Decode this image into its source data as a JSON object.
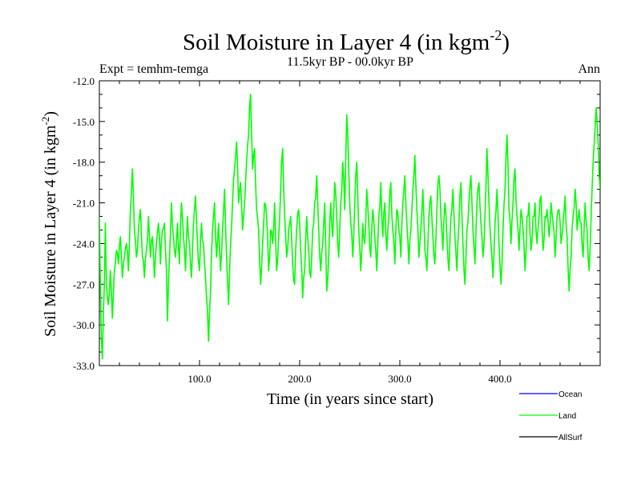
{
  "chart_data": {
    "type": "line",
    "title": "Soil Moisture in Layer 4 (in kgm",
    "title_sup": "-2",
    "title_end": ")",
    "subtitle_left": "Expt = temhm-temga",
    "subtitle_center": "11.5kyr BP - 00.0kyr BP",
    "subtitle_right": "Ann",
    "xlabel": "Time (in years since start)",
    "ylabel": "Soil Moisture in Layer 4 (in kgm",
    "ylabel_sup": "-2",
    "ylabel_end": ")",
    "xlim": [
      0,
      500
    ],
    "ylim": [
      -33,
      -12
    ],
    "x_ticks": [
      100,
      200,
      300,
      400
    ],
    "x_tick_labels": [
      "100.0",
      "200.0",
      "300.0",
      "400.0"
    ],
    "y_ticks": [
      -33,
      -30,
      -27,
      -24,
      -21,
      -18,
      -15,
      -12
    ],
    "y_tick_labels": [
      "-33.0",
      "-30.0",
      "-27.0",
      "-24.0",
      "-21.0",
      "-18.0",
      "-15.0",
      "-12.0"
    ],
    "legend": [
      {
        "name": "Ocean",
        "color": "#0000ff"
      },
      {
        "name": "Land",
        "color": "#00ff00"
      },
      {
        "name": "AllSurf",
        "color": "#000000"
      }
    ],
    "series": [
      {
        "name": "Land",
        "color": "#00ff00",
        "anchors": [
          [
            0,
            -22
          ],
          [
            2,
            -31
          ],
          [
            3,
            -32.5
          ],
          [
            5,
            -27
          ],
          [
            6,
            -22.5
          ],
          [
            7,
            -27
          ],
          [
            9,
            -28.5
          ],
          [
            11,
            -26
          ],
          [
            13,
            -29.5
          ],
          [
            15,
            -26
          ],
          [
            17,
            -24.5
          ],
          [
            19,
            -25.5
          ],
          [
            21,
            -23.5
          ],
          [
            23,
            -26.5
          ],
          [
            25,
            -25
          ],
          [
            27,
            -24
          ],
          [
            29,
            -26
          ],
          [
            31,
            -21.5
          ],
          [
            33,
            -18.5
          ],
          [
            35,
            -23
          ],
          [
            37,
            -25
          ],
          [
            39,
            -23
          ],
          [
            41,
            -21.5
          ],
          [
            43,
            -25
          ],
          [
            45,
            -26.5
          ],
          [
            47,
            -24.5
          ],
          [
            49,
            -22
          ],
          [
            51,
            -25
          ],
          [
            53,
            -23.5
          ],
          [
            55,
            -26.5
          ],
          [
            57,
            -24
          ],
          [
            59,
            -22.5
          ],
          [
            61,
            -25.5
          ],
          [
            63,
            -23
          ],
          [
            65,
            -22.5
          ],
          [
            67,
            -26
          ],
          [
            68,
            -29.7
          ],
          [
            70,
            -25
          ],
          [
            72,
            -21
          ],
          [
            74,
            -23.5
          ],
          [
            76,
            -25
          ],
          [
            78,
            -22.5
          ],
          [
            80,
            -25.5
          ],
          [
            82,
            -21
          ],
          [
            84,
            -23.5
          ],
          [
            86,
            -26
          ],
          [
            88,
            -22
          ],
          [
            90,
            -24
          ],
          [
            92,
            -26.5
          ],
          [
            94,
            -22.5
          ],
          [
            96,
            -20.5
          ],
          [
            98,
            -24
          ],
          [
            100,
            -26
          ],
          [
            102,
            -22.5
          ],
          [
            104,
            -24
          ],
          [
            106,
            -26.5
          ],
          [
            108,
            -29
          ],
          [
            109,
            -31.2
          ],
          [
            111,
            -27.5
          ],
          [
            113,
            -23
          ],
          [
            115,
            -21
          ],
          [
            117,
            -25
          ],
          [
            119,
            -22.5
          ],
          [
            121,
            -26
          ],
          [
            123,
            -23
          ],
          [
            125,
            -20
          ],
          [
            127,
            -25
          ],
          [
            129,
            -28.5
          ],
          [
            131,
            -24
          ],
          [
            133,
            -21
          ],
          [
            135,
            -18.5
          ],
          [
            137,
            -16.5
          ],
          [
            139,
            -21
          ],
          [
            141,
            -19.5
          ],
          [
            143,
            -23
          ],
          [
            145,
            -21
          ],
          [
            147,
            -18
          ],
          [
            149,
            -16
          ],
          [
            151,
            -13
          ],
          [
            153,
            -18.5
          ],
          [
            155,
            -17
          ],
          [
            157,
            -21.5
          ],
          [
            159,
            -23
          ],
          [
            161,
            -27
          ],
          [
            163,
            -24
          ],
          [
            165,
            -21
          ],
          [
            167,
            -22
          ],
          [
            169,
            -26
          ],
          [
            171,
            -23
          ],
          [
            173,
            -24
          ],
          [
            175,
            -21
          ],
          [
            177,
            -26
          ],
          [
            179,
            -23.5
          ],
          [
            181,
            -20
          ],
          [
            183,
            -17
          ],
          [
            185,
            -22
          ],
          [
            187,
            -25
          ],
          [
            189,
            -23
          ],
          [
            191,
            -22
          ],
          [
            193,
            -25.5
          ],
          [
            195,
            -27
          ],
          [
            197,
            -23
          ],
          [
            199,
            -21.5
          ],
          [
            201,
            -24.5
          ],
          [
            203,
            -28
          ],
          [
            205,
            -26
          ],
          [
            207,
            -22
          ],
          [
            209,
            -24.5
          ],
          [
            211,
            -26.5
          ],
          [
            213,
            -23
          ],
          [
            215,
            -21
          ],
          [
            217,
            -19
          ],
          [
            219,
            -23
          ],
          [
            221,
            -26
          ],
          [
            223,
            -24
          ],
          [
            225,
            -21
          ],
          [
            227,
            -27.5
          ],
          [
            229,
            -25
          ],
          [
            231,
            -21
          ],
          [
            233,
            -23.5
          ],
          [
            235,
            -19.5
          ],
          [
            237,
            -22
          ],
          [
            239,
            -25
          ],
          [
            241,
            -21
          ],
          [
            243,
            -18
          ],
          [
            245,
            -21.5
          ],
          [
            247,
            -14.5
          ],
          [
            249,
            -18.5
          ],
          [
            251,
            -22.5
          ],
          [
            253,
            -25
          ],
          [
            255,
            -21
          ],
          [
            257,
            -18
          ],
          [
            259,
            -23
          ],
          [
            261,
            -26
          ],
          [
            263,
            -22.5
          ],
          [
            265,
            -24
          ],
          [
            267,
            -20
          ],
          [
            269,
            -22.5
          ],
          [
            271,
            -25
          ],
          [
            273,
            -21.5
          ],
          [
            275,
            -23.5
          ],
          [
            277,
            -26
          ],
          [
            279,
            -22
          ],
          [
            281,
            -19.5
          ],
          [
            283,
            -23.5
          ],
          [
            285,
            -21
          ],
          [
            287,
            -24.5
          ],
          [
            289,
            -22
          ],
          [
            291,
            -19.5
          ],
          [
            293,
            -23
          ],
          [
            295,
            -25.5
          ],
          [
            297,
            -21.5
          ],
          [
            299,
            -23
          ],
          [
            301,
            -25
          ],
          [
            303,
            -21
          ],
          [
            305,
            -19
          ],
          [
            307,
            -22.5
          ],
          [
            309,
            -25.5
          ],
          [
            311,
            -23
          ],
          [
            313,
            -20
          ],
          [
            315,
            -17.5
          ],
          [
            317,
            -21.5
          ],
          [
            319,
            -25
          ],
          [
            321,
            -23
          ],
          [
            323,
            -20
          ],
          [
            325,
            -24.5
          ],
          [
            327,
            -26
          ],
          [
            329,
            -22
          ],
          [
            331,
            -20.5
          ],
          [
            333,
            -23.5
          ],
          [
            335,
            -25.5
          ],
          [
            337,
            -21.5
          ],
          [
            339,
            -19
          ],
          [
            341,
            -22
          ],
          [
            343,
            -24.5
          ],
          [
            345,
            -21
          ],
          [
            347,
            -23.5
          ],
          [
            349,
            -26
          ],
          [
            351,
            -22
          ],
          [
            353,
            -20
          ],
          [
            355,
            -23.5
          ],
          [
            357,
            -26
          ],
          [
            359,
            -22.5
          ],
          [
            361,
            -19.5
          ],
          [
            363,
            -24
          ],
          [
            365,
            -27
          ],
          [
            367,
            -23
          ],
          [
            369,
            -21
          ],
          [
            371,
            -19
          ],
          [
            373,
            -23
          ],
          [
            375,
            -25.5
          ],
          [
            377,
            -21
          ],
          [
            379,
            -19.5
          ],
          [
            381,
            -22.5
          ],
          [
            383,
            -25
          ],
          [
            385,
            -22
          ],
          [
            387,
            -17
          ],
          [
            389,
            -21
          ],
          [
            391,
            -24
          ],
          [
            393,
            -26.5
          ],
          [
            395,
            -22.5
          ],
          [
            397,
            -20
          ],
          [
            399,
            -24
          ],
          [
            401,
            -27
          ],
          [
            403,
            -23
          ],
          [
            405,
            -20
          ],
          [
            407,
            -16
          ],
          [
            409,
            -21.5
          ],
          [
            411,
            -24
          ],
          [
            413,
            -21
          ],
          [
            415,
            -18.5
          ],
          [
            417,
            -22
          ],
          [
            419,
            -24.5
          ],
          [
            421,
            -21.5
          ],
          [
            423,
            -23
          ],
          [
            425,
            -26
          ],
          [
            427,
            -22
          ],
          [
            429,
            -21
          ],
          [
            431,
            -24.5
          ],
          [
            433,
            -22
          ],
          [
            435,
            -21
          ],
          [
            437,
            -24
          ],
          [
            439,
            -22
          ],
          [
            441,
            -20.5
          ],
          [
            443,
            -24.5
          ],
          [
            445,
            -22
          ],
          [
            447,
            -21.5
          ],
          [
            449,
            -23.5
          ],
          [
            451,
            -21
          ],
          [
            453,
            -22.5
          ],
          [
            455,
            -25
          ],
          [
            457,
            -22
          ],
          [
            459,
            -21.5
          ],
          [
            461,
            -24
          ],
          [
            463,
            -22.5
          ],
          [
            465,
            -20.5
          ],
          [
            467,
            -23.5
          ],
          [
            469,
            -27.5
          ],
          [
            471,
            -25
          ],
          [
            473,
            -22
          ],
          [
            475,
            -20
          ],
          [
            477,
            -23
          ],
          [
            479,
            -21.5
          ],
          [
            481,
            -22.5
          ],
          [
            483,
            -25
          ],
          [
            485,
            -21
          ],
          [
            487,
            -23
          ],
          [
            489,
            -26
          ],
          [
            491,
            -22
          ],
          [
            493,
            -18
          ],
          [
            495,
            -15.5
          ],
          [
            496,
            -14
          ],
          [
            497,
            -15
          ],
          [
            498,
            -16.5
          ],
          [
            499,
            -19
          ],
          [
            500,
            -20
          ]
        ]
      }
    ]
  }
}
